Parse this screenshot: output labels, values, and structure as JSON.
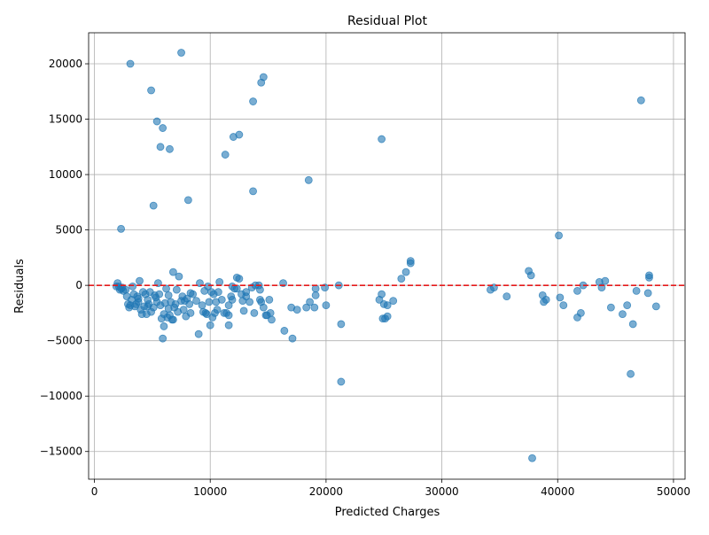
{
  "chart_data": {
    "type": "scatter",
    "title": "Residual Plot",
    "xlabel": "Predicted Charges",
    "ylabel": "Residuals",
    "xlim": [
      -500,
      51000
    ],
    "ylim": [
      -17500,
      22800
    ],
    "x_ticks": [
      0,
      10000,
      20000,
      30000,
      40000,
      50000
    ],
    "x_tick_labels": [
      "0",
      "10000",
      "20000",
      "30000",
      "40000",
      "50000"
    ],
    "y_ticks": [
      -15000,
      -10000,
      -5000,
      0,
      5000,
      10000,
      15000,
      20000
    ],
    "y_tick_labels": [
      "−15000",
      "−10000",
      "−5000",
      "0",
      "5000",
      "10000",
      "15000",
      "20000"
    ],
    "grid": true,
    "point_color": "#1f77b4",
    "reference_line": {
      "y": 0,
      "color": "#e41a1c",
      "style": "dashed"
    },
    "points": [
      [
        3100,
        20000
      ],
      [
        7500,
        21000
      ],
      [
        4900,
        17600
      ],
      [
        14600,
        18800
      ],
      [
        14400,
        18300
      ],
      [
        13700,
        16600
      ],
      [
        47200,
        16700
      ],
      [
        5400,
        14800
      ],
      [
        5900,
        14200
      ],
      [
        12500,
        13600
      ],
      [
        12000,
        13400
      ],
      [
        24800,
        13200
      ],
      [
        5700,
        12500
      ],
      [
        6500,
        12300
      ],
      [
        11300,
        11800
      ],
      [
        18500,
        9500
      ],
      [
        13700,
        8500
      ],
      [
        8100,
        7700
      ],
      [
        5100,
        7200
      ],
      [
        2300,
        5100
      ],
      [
        40100,
        4500
      ],
      [
        27300,
        2200
      ],
      [
        27300,
        2000
      ],
      [
        26900,
        1200
      ],
      [
        26500,
        600
      ],
      [
        37500,
        1300
      ],
      [
        37700,
        900
      ],
      [
        47900,
        900
      ],
      [
        47900,
        700
      ],
      [
        43600,
        300
      ],
      [
        44100,
        400
      ],
      [
        42200,
        0
      ],
      [
        43800,
        -200
      ],
      [
        41700,
        -500
      ],
      [
        46800,
        -500
      ],
      [
        47800,
        -700
      ],
      [
        34200,
        -400
      ],
      [
        34500,
        -200
      ],
      [
        35600,
        -1000
      ],
      [
        38700,
        -900
      ],
      [
        38800,
        -1500
      ],
      [
        39000,
        -1300
      ],
      [
        40200,
        -1100
      ],
      [
        40500,
        -1800
      ],
      [
        42000,
        -2500
      ],
      [
        41700,
        -2900
      ],
      [
        44600,
        -2000
      ],
      [
        45600,
        -2600
      ],
      [
        46000,
        -1800
      ],
      [
        48500,
        -1900
      ],
      [
        46500,
        -3500
      ],
      [
        46300,
        -8000
      ],
      [
        37800,
        -15600
      ],
      [
        21300,
        -8700
      ],
      [
        21300,
        -3500
      ],
      [
        17100,
        -4800
      ],
      [
        16400,
        -4100
      ],
      [
        17000,
        -2000
      ],
      [
        17500,
        -2200
      ],
      [
        18300,
        -2000
      ],
      [
        18600,
        -1500
      ],
      [
        19000,
        -2000
      ],
      [
        19100,
        -900
      ],
      [
        19100,
        -300
      ],
      [
        19900,
        -200
      ],
      [
        20000,
        -1800
      ],
      [
        21100,
        0
      ],
      [
        16300,
        200
      ],
      [
        24600,
        -1300
      ],
      [
        24800,
        -800
      ],
      [
        24900,
        -3000
      ],
      [
        25000,
        -1700
      ],
      [
        25100,
        -3000
      ],
      [
        25300,
        -1800
      ],
      [
        25300,
        -2800
      ],
      [
        25800,
        -1400
      ],
      [
        15200,
        -2500
      ],
      [
        15300,
        -3100
      ],
      [
        14800,
        -2700
      ],
      [
        14900,
        -2700
      ],
      [
        15100,
        -1300
      ],
      [
        14600,
        -2000
      ],
      [
        14300,
        -1300
      ],
      [
        14400,
        -1500
      ],
      [
        14200,
        0
      ],
      [
        13900,
        0
      ],
      [
        13600,
        -200
      ],
      [
        13800,
        -2500
      ],
      [
        13400,
        -1500
      ],
      [
        13100,
        -1000
      ],
      [
        12900,
        -2300
      ],
      [
        12800,
        -1400
      ],
      [
        12700,
        -800
      ],
      [
        12500,
        600
      ],
      [
        12300,
        700
      ],
      [
        12100,
        -300
      ],
      [
        11900,
        -100
      ],
      [
        11900,
        -1300
      ],
      [
        11800,
        -1000
      ],
      [
        11600,
        -1800
      ],
      [
        11600,
        -3600
      ],
      [
        11400,
        -2500
      ],
      [
        11200,
        -2500
      ],
      [
        11000,
        -1300
      ],
      [
        10800,
        300
      ],
      [
        10700,
        -600
      ],
      [
        10600,
        -2200
      ],
      [
        10500,
        -1500
      ],
      [
        10400,
        -2500
      ],
      [
        10300,
        -800
      ],
      [
        10200,
        -2900
      ],
      [
        10100,
        -600
      ],
      [
        10000,
        -3600
      ],
      [
        9900,
        -1500
      ],
      [
        9800,
        -100
      ],
      [
        9600,
        -2500
      ],
      [
        9500,
        -500
      ],
      [
        9400,
        -2400
      ],
      [
        9300,
        -1800
      ],
      [
        9100,
        200
      ],
      [
        9000,
        -4400
      ],
      [
        8800,
        -1400
      ],
      [
        8500,
        -800
      ],
      [
        8300,
        -2500
      ],
      [
        8200,
        -1700
      ],
      [
        8000,
        -1200
      ],
      [
        7900,
        -2800
      ],
      [
        7700,
        -2200
      ],
      [
        7500,
        -1400
      ],
      [
        7300,
        800
      ],
      [
        7200,
        -2400
      ],
      [
        7100,
        -400
      ],
      [
        7000,
        -1700
      ],
      [
        6900,
        -2000
      ],
      [
        6800,
        1200
      ],
      [
        6700,
        -3100
      ],
      [
        6600,
        -1500
      ],
      [
        6500,
        -2700
      ],
      [
        6400,
        -900
      ],
      [
        6300,
        -2900
      ],
      [
        6200,
        -300
      ],
      [
        6100,
        -1600
      ],
      [
        6000,
        -2600
      ],
      [
        5900,
        -4800
      ],
      [
        5800,
        -3000
      ],
      [
        5700,
        -1800
      ],
      [
        5600,
        -800
      ],
      [
        5500,
        200
      ],
      [
        5400,
        -1500
      ],
      [
        5300,
        -1100
      ],
      [
        5100,
        -2000
      ],
      [
        4900,
        -2400
      ],
      [
        4800,
        -600
      ],
      [
        4700,
        -1700
      ],
      [
        4600,
        -1300
      ],
      [
        4500,
        -2600
      ],
      [
        4400,
        -800
      ],
      [
        4300,
        -1900
      ],
      [
        4200,
        -600
      ],
      [
        4100,
        -2600
      ],
      [
        4000,
        -2200
      ],
      [
        3900,
        400
      ],
      [
        3800,
        -1500
      ],
      [
        3700,
        -1000
      ],
      [
        3600,
        -1700
      ],
      [
        3500,
        -1900
      ],
      [
        3400,
        -800
      ],
      [
        3300,
        -100
      ],
      [
        3200,
        -1300
      ],
      [
        3100,
        -1800
      ],
      [
        3000,
        -2000
      ],
      [
        2900,
        -1700
      ],
      [
        2800,
        -1000
      ],
      [
        2700,
        -400
      ],
      [
        2500,
        -500
      ],
      [
        2400,
        -200
      ],
      [
        2300,
        -300
      ],
      [
        2200,
        -400
      ],
      [
        2100,
        -100
      ],
      [
        2000,
        200
      ],
      [
        1900,
        -100
      ],
      [
        6000,
        -3700
      ],
      [
        6800,
        -3100
      ],
      [
        7800,
        -1400
      ],
      [
        8300,
        -700
      ],
      [
        11600,
        -2700
      ],
      [
        12300,
        -300
      ],
      [
        13100,
        -600
      ],
      [
        14300,
        -400
      ],
      [
        5200,
        -900
      ],
      [
        4600,
        -1900
      ],
      [
        3800,
        -1200
      ],
      [
        6400,
        -2100
      ],
      [
        9700,
        -2600
      ],
      [
        7600,
        -1000
      ]
    ]
  }
}
